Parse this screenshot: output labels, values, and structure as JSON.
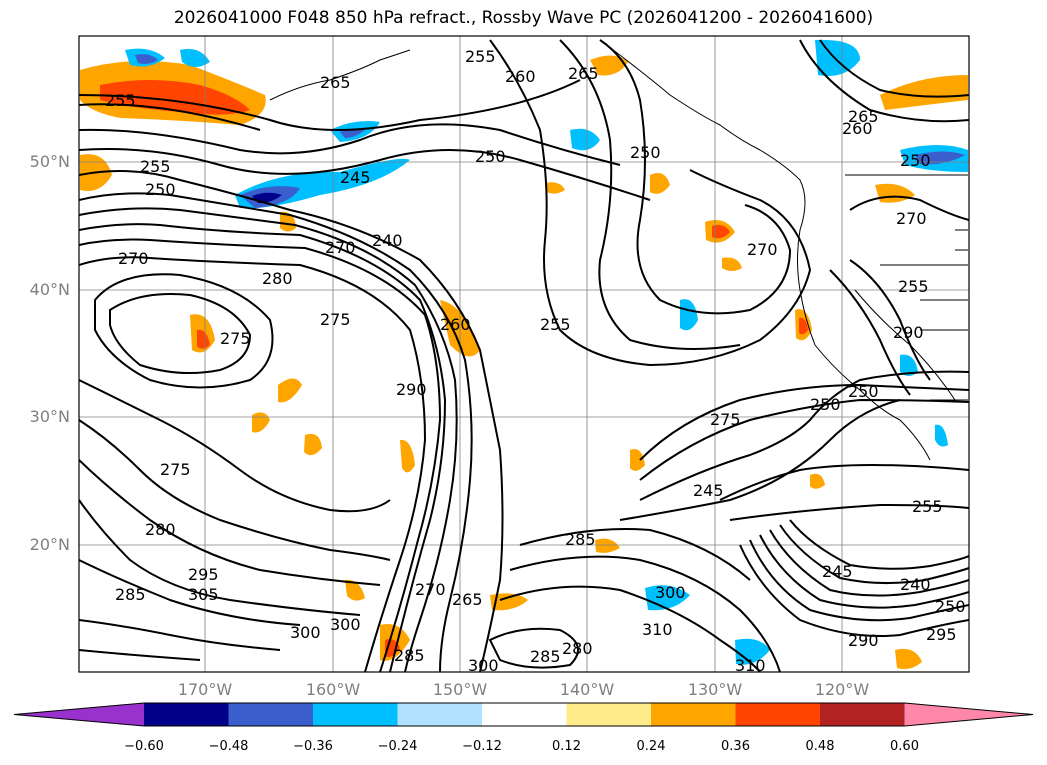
{
  "title": "2026041000 F048 850 hPa refract., Rossby Wave PC (2026041200 - 2026041600)",
  "lat_labels": [
    "50°N",
    "40°N",
    "30°N",
    "20°N"
  ],
  "lon_labels": [
    "170°W",
    "160°W",
    "150°W",
    "140°W",
    "130°W",
    "120°W"
  ],
  "contour_labels": [
    "255",
    "260",
    "265",
    "255",
    "250",
    "265",
    "260",
    "245",
    "250",
    "255",
    "250",
    "270",
    "240",
    "270",
    "280",
    "250",
    "265",
    "270",
    "275",
    "275",
    "275",
    "260",
    "290",
    "255",
    "275",
    "250",
    "250",
    "245",
    "255",
    "270",
    "280",
    "290",
    "295",
    "305",
    "285",
    "245",
    "255",
    "285",
    "265",
    "300",
    "300",
    "285",
    "300",
    "280",
    "285",
    "310",
    "300",
    "310",
    "270",
    "240",
    "250",
    "290",
    "295"
  ],
  "colorbar": {
    "ticks": [
      "−0.60",
      "−0.48",
      "−0.36",
      "−0.24",
      "−0.12",
      "0.12",
      "0.24",
      "0.36",
      "0.48",
      "0.60"
    ],
    "colors": [
      "#9932cc",
      "#00008b",
      "#3a5fcd",
      "#00bfff",
      "#b0e2ff",
      "#ffffff",
      "#ffec8b",
      "#ffa500",
      "#ff4500",
      "#b22222",
      "#ff88aa"
    ]
  },
  "colors": {
    "positive": "#ffa500",
    "strong_positive": "#ff4500",
    "negative": "#00bfff",
    "strong_negative": "#3a5fcd",
    "contour": "#000000",
    "grid": "#808080"
  }
}
